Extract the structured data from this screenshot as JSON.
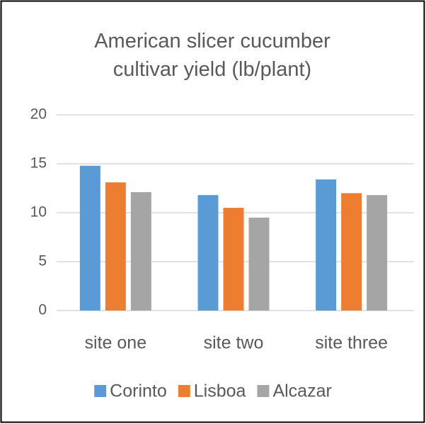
{
  "chart_data": {
    "type": "bar",
    "title": "American slicer cucumber cultivar yield (lb/plant)",
    "categories": [
      "site one",
      "site two",
      "site three"
    ],
    "series": [
      {
        "name": "Corinto",
        "color": "#5b9bd5",
        "values": [
          14.8,
          11.8,
          13.4
        ]
      },
      {
        "name": "Lisboa",
        "color": "#ed7d31",
        "values": [
          13.1,
          10.5,
          12.0
        ]
      },
      {
        "name": "Alcazar",
        "color": "#a5a5a5",
        "values": [
          12.1,
          9.5,
          11.8
        ]
      }
    ],
    "ylim": [
      0,
      20
    ],
    "yticks": [
      0,
      5,
      10,
      15,
      20
    ],
    "grid": true,
    "legend": "bottom"
  }
}
